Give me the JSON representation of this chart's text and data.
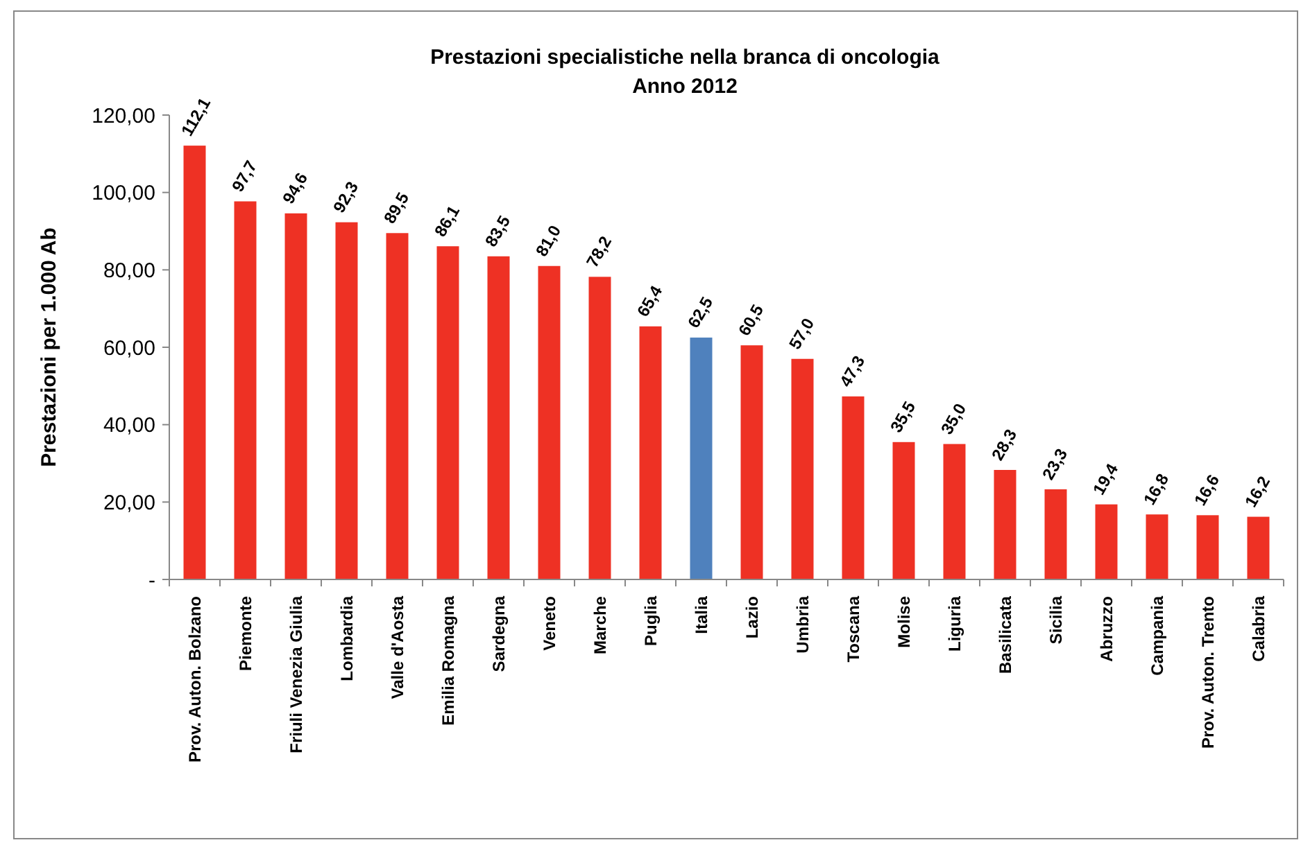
{
  "chart_data": {
    "type": "bar",
    "title": "Prestazioni specialistiche nella branca di oncologia",
    "subtitle": "Anno 2012",
    "ylabel": "Prestazioni per 1.000 Ab",
    "categories": [
      "Prov. Auton. Bolzano",
      "Piemonte",
      "Friuli Venezia Giulia",
      "Lombardia",
      "Valle d'Aosta",
      "Emilia Romagna",
      "Sardegna",
      "Veneto",
      "Marche",
      "Puglia",
      "Italia",
      "Lazio",
      "Umbria",
      "Toscana",
      "Molise",
      "Liguria",
      "Basilicata",
      "Sicilia",
      "Abruzzo",
      "Campania",
      "Prov. Auton. Trento",
      "Calabria"
    ],
    "values": [
      112.1,
      97.7,
      94.6,
      92.3,
      89.5,
      86.1,
      83.5,
      81.0,
      78.2,
      65.4,
      62.5,
      60.5,
      57.0,
      47.3,
      35.5,
      35.0,
      28.3,
      23.3,
      19.4,
      16.8,
      16.6,
      16.2
    ],
    "value_labels": [
      "112,1",
      "97,7",
      "94,6",
      "92,3",
      "89,5",
      "86,1",
      "83,5",
      "81,0",
      "78,2",
      "65,4",
      "62,5",
      "60,5",
      "57,0",
      "47,3",
      "35,5",
      "35,0",
      "28,3",
      "23,3",
      "19,4",
      "16,8",
      "16,6",
      "16,2"
    ],
    "colors": [
      "#ee3124",
      "#ee3124",
      "#ee3124",
      "#ee3124",
      "#ee3124",
      "#ee3124",
      "#ee3124",
      "#ee3124",
      "#ee3124",
      "#ee3124",
      "#4f81bd",
      "#ee3124",
      "#ee3124",
      "#ee3124",
      "#ee3124",
      "#ee3124",
      "#ee3124",
      "#ee3124",
      "#ee3124",
      "#ee3124",
      "#ee3124",
      "#ee3124"
    ],
    "ylim": [
      0,
      120
    ],
    "yticks": [
      {
        "value": 0,
        "label": "-"
      },
      {
        "value": 20,
        "label": "20,00"
      },
      {
        "value": 40,
        "label": "40,00"
      },
      {
        "value": 60,
        "label": "60,00"
      },
      {
        "value": 80,
        "label": "80,00"
      },
      {
        "value": 100,
        "label": "100,00"
      },
      {
        "value": 120,
        "label": "120,00"
      }
    ],
    "grid": false
  }
}
